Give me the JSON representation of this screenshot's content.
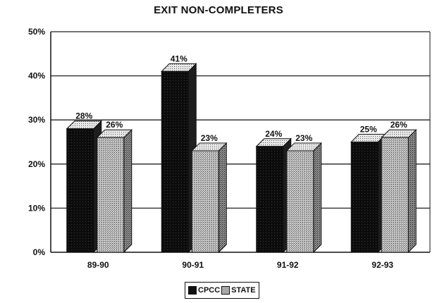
{
  "chart_data": {
    "type": "bar",
    "title": "EXIT NON-COMPLETERS",
    "categories": [
      "89-90",
      "90-91",
      "91-92",
      "92-93"
    ],
    "series": [
      {
        "name": "CPCC",
        "values": [
          28,
          41,
          24,
          25
        ],
        "labels": [
          "28%",
          "41%",
          "24%",
          "25%"
        ],
        "color": "#111111"
      },
      {
        "name": "STATE",
        "values": [
          26,
          23,
          23,
          26
        ],
        "labels": [
          "26%",
          "23%",
          "23%",
          "26%"
        ],
        "color": "#a8a8a8"
      }
    ],
    "ylim": [
      0,
      50
    ],
    "yticks": [
      0,
      10,
      20,
      30,
      40,
      50
    ],
    "ytick_labels": [
      "0%",
      "10%",
      "20%",
      "30%",
      "40%",
      "50%"
    ],
    "grid": true,
    "legend_position": "bottom-center"
  }
}
